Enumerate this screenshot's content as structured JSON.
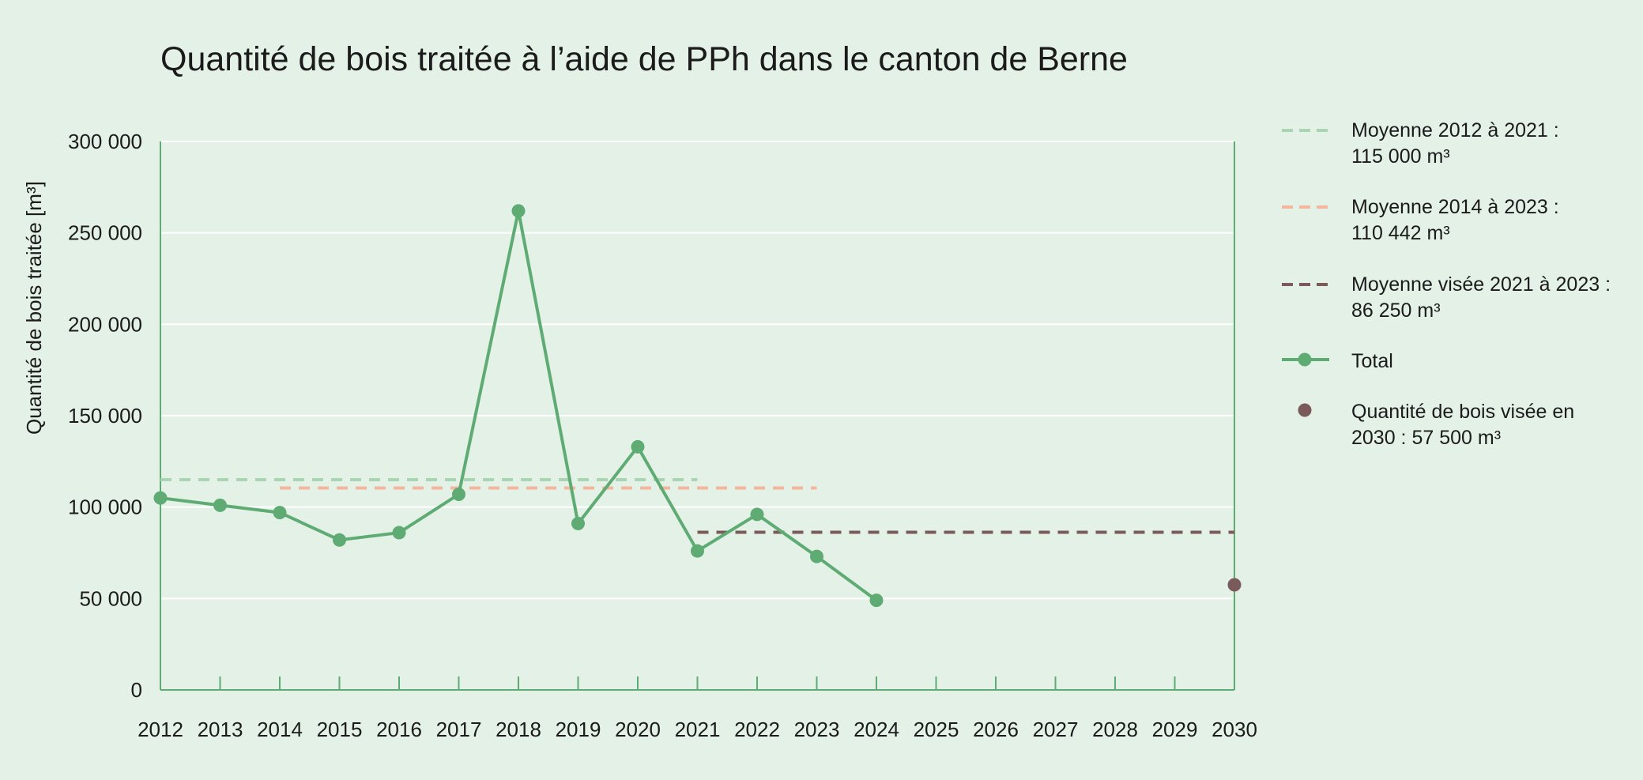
{
  "chart_data": {
    "type": "line",
    "title": "Quantité de bois traitée à l’aide de PPh dans le canton de Berne",
    "ylabel": "Quantité de bois traitée [m³]",
    "xlabel": "",
    "ylim": [
      0,
      300000
    ],
    "xlim": [
      2012,
      2030
    ],
    "y_ticks": [
      0,
      50000,
      100000,
      150000,
      200000,
      250000,
      300000
    ],
    "y_tick_labels": [
      "0",
      "50 000",
      "100 000",
      "150 000",
      "200 000",
      "250 000",
      "300 000"
    ],
    "x_ticks": [
      2012,
      2013,
      2014,
      2015,
      2016,
      2017,
      2018,
      2019,
      2020,
      2021,
      2022,
      2023,
      2024,
      2025,
      2026,
      2027,
      2028,
      2029,
      2030
    ],
    "grid": "horizontal",
    "legend_position": "right",
    "series": [
      {
        "name": "Total",
        "kind": "line-markers",
        "color": "#5fab74",
        "x": [
          2012,
          2013,
          2014,
          2015,
          2016,
          2017,
          2018,
          2019,
          2020,
          2021,
          2022,
          2023,
          2024
        ],
        "values": [
          105000,
          101000,
          97000,
          82000,
          86000,
          107000,
          262000,
          91000,
          133000,
          76000,
          96000,
          73000,
          49000
        ]
      }
    ],
    "reference_lines": [
      {
        "legend_line1": "Moyenne 2012 à 2021 :",
        "legend_line2": "115 000 m³",
        "value": 115000,
        "x_start": 2012,
        "x_end": 2021,
        "color": "#a9d5b2"
      },
      {
        "legend_line1": "Moyenne 2014 à 2023 :",
        "legend_line2": "110 442 m³",
        "value": 110442,
        "x_start": 2014,
        "x_end": 2023,
        "color": "#f5b6a0"
      },
      {
        "legend_line1": "Moyenne visée 2021 à 2023 :",
        "legend_line2": "86 250 m³",
        "value": 86250,
        "x_start": 2021,
        "x_end": 2030,
        "color": "#7a5a5a"
      }
    ],
    "target_point": {
      "legend_line1": "Quantité de bois visée en",
      "legend_line2": "2030 : 57 500 m³",
      "x": 2030,
      "value": 57500,
      "color": "#7a5a5a"
    }
  }
}
